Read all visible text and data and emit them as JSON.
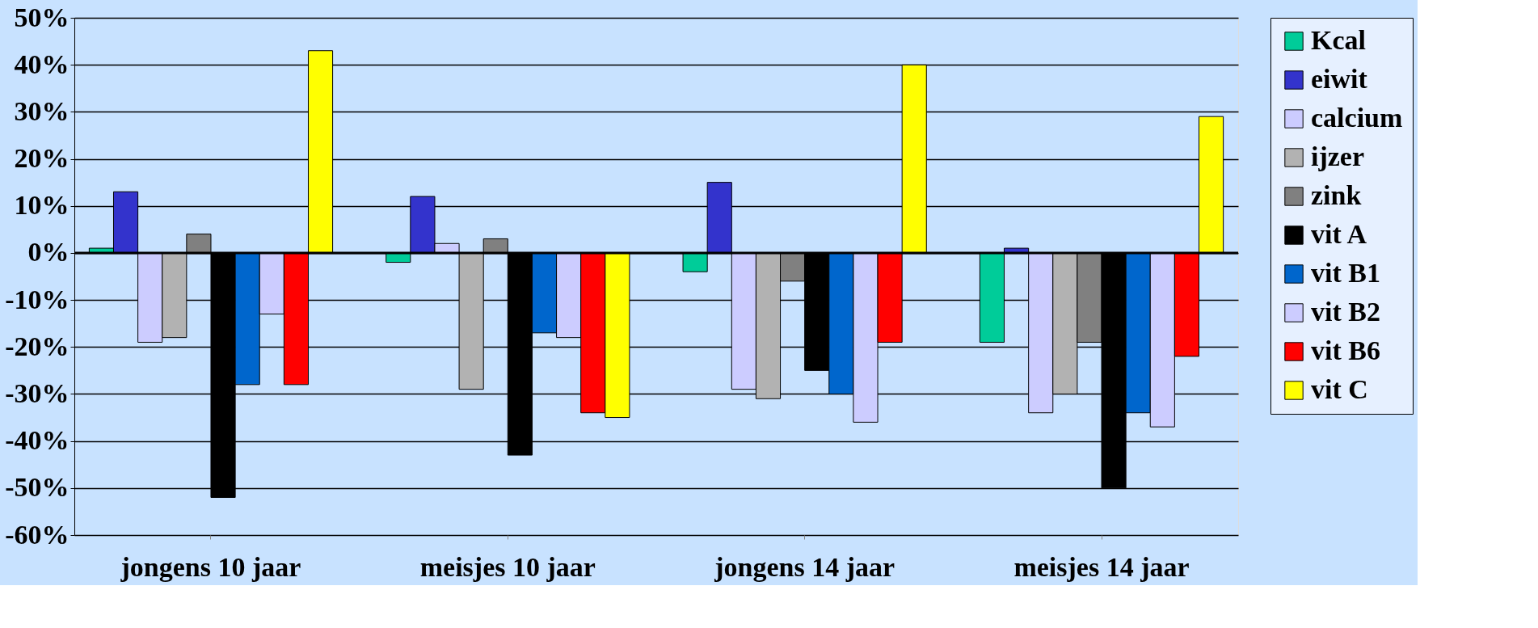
{
  "chart_data": {
    "type": "bar",
    "categories": [
      "jongens 10 jaar",
      "meisjes 10 jaar",
      "jongens 14 jaar",
      "meisjes 14 jaar"
    ],
    "series": [
      {
        "name": "Kcal",
        "color": "#00cc99",
        "values": [
          1,
          -2,
          -4,
          -19
        ]
      },
      {
        "name": "eiwit",
        "color": "#3333cc",
        "values": [
          13,
          12,
          15,
          1
        ]
      },
      {
        "name": "calcium",
        "color": "#ccccff",
        "values": [
          -19,
          2,
          -29,
          -34
        ]
      },
      {
        "name": "ijzer",
        "color": "#b2b2b2",
        "values": [
          -18,
          -29,
          -31,
          -30
        ]
      },
      {
        "name": "zink",
        "color": "#808080",
        "values": [
          4,
          3,
          -6,
          -19
        ]
      },
      {
        "name": "vit A",
        "color": "#000000",
        "values": [
          -52,
          -43,
          -25,
          -50
        ]
      },
      {
        "name": "vit B1",
        "color": "#0066cc",
        "values": [
          -28,
          -17,
          -30,
          -34
        ]
      },
      {
        "name": "vit B2",
        "color": "#ccccff",
        "values": [
          -13,
          -18,
          -36,
          -37
        ]
      },
      {
        "name": "vit B6",
        "color": "#ff0000",
        "values": [
          -28,
          -34,
          -19,
          -22
        ]
      },
      {
        "name": "vit C",
        "color": "#ffff00",
        "values": [
          43,
          -35,
          40,
          29
        ]
      }
    ],
    "ylim": [
      -60,
      50
    ],
    "yticks": [
      {
        "value": 50,
        "label": "50%"
      },
      {
        "value": 40,
        "label": "40%"
      },
      {
        "value": 30,
        "label": "30%"
      },
      {
        "value": 20,
        "label": "20%"
      },
      {
        "value": 10,
        "label": "10%"
      },
      {
        "value": 0,
        "label": "0%"
      },
      {
        "value": -10,
        "label": "-10%"
      },
      {
        "value": -20,
        "label": "-20%"
      },
      {
        "value": -30,
        "label": "-30%"
      },
      {
        "value": -40,
        "label": "-40%"
      },
      {
        "value": -50,
        "label": "-50%"
      },
      {
        "value": -60,
        "label": "-60%"
      }
    ],
    "grid": "y",
    "legend": "right"
  }
}
